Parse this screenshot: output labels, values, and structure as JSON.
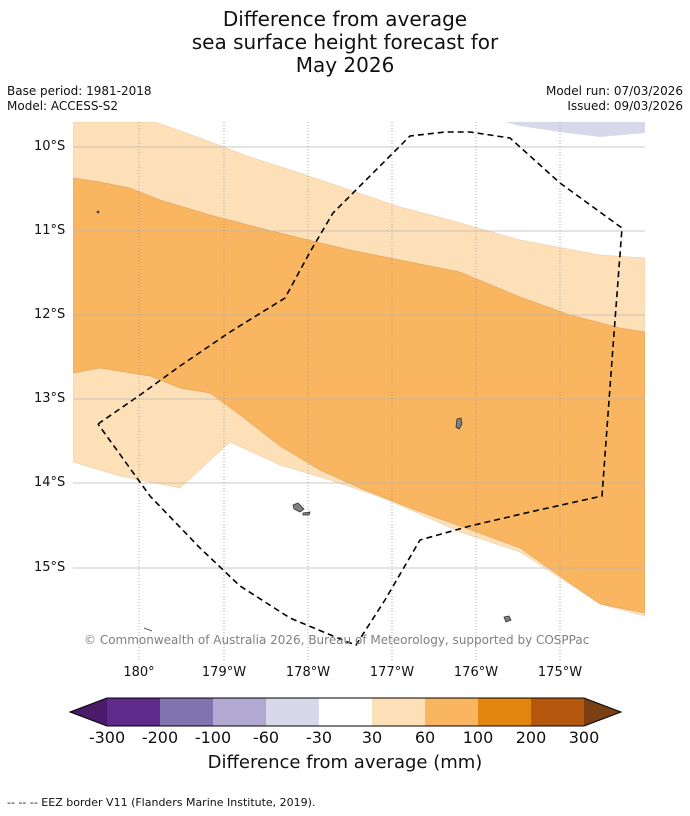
{
  "title": {
    "line1": "Difference from average",
    "line2": "sea surface height forecast for",
    "line3": "May 2026"
  },
  "meta": {
    "base_period": "Base period: 1981-2018",
    "model": "Model: ACCESS-S2",
    "model_run": "Model run: 07/03/2026",
    "issued": "Issued: 09/03/2026"
  },
  "map": {
    "lat_labels": [
      "10°S",
      "11°S",
      "12°S",
      "13°S",
      "14°S",
      "15°S"
    ],
    "lon_labels": [
      "180°",
      "179°W",
      "178°W",
      "177°W",
      "176°W",
      "175°W"
    ],
    "copyright": "© Commonwealth of Australia 2026, Bureau of Meteorology, supported by COSPPac"
  },
  "colorbar": {
    "ticks": [
      "-300",
      "-200",
      "-100",
      "-60",
      "-30",
      "30",
      "60",
      "100",
      "200",
      "300"
    ],
    "colors": [
      "#4a1a6b",
      "#5e2a8c",
      "#8172b0",
      "#b2a9d2",
      "#d7d8ea",
      "#ffffff",
      "#fde0b8",
      "#f9b560",
      "#e3860f",
      "#b4580e",
      "#7a3f12"
    ],
    "label": "Difference from average (mm)"
  },
  "footnote": "--  --  -- EEZ border V11 (Flanders Marine Institute, 2019)."
}
